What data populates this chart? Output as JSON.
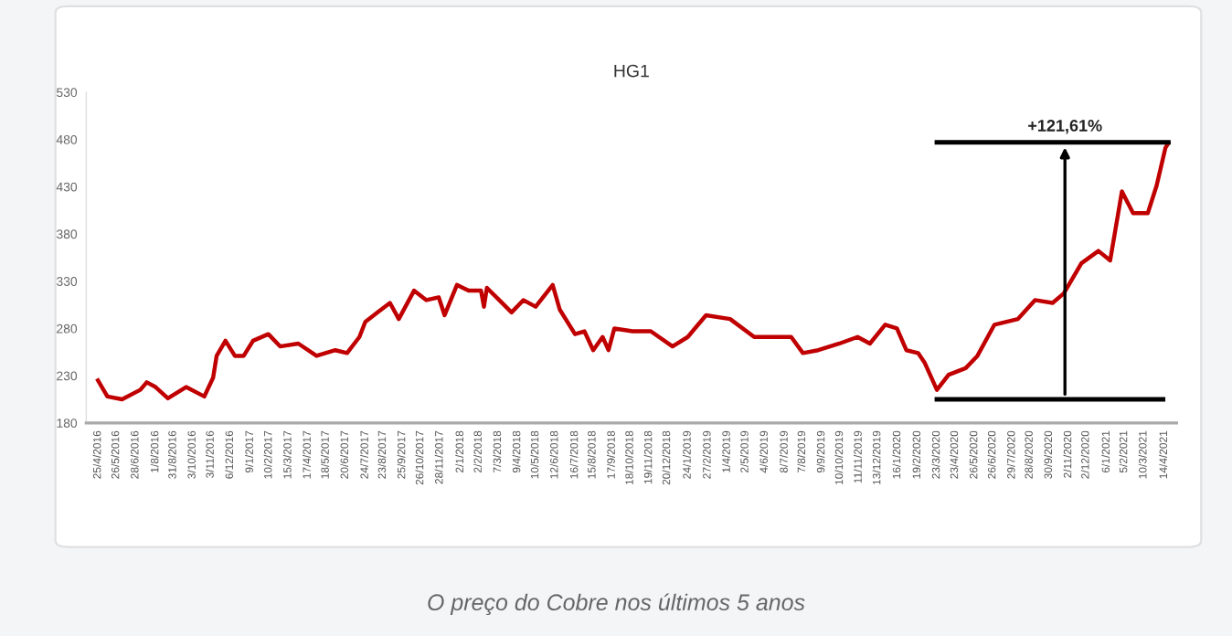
{
  "chart_data": {
    "type": "line",
    "title": "HG1",
    "x": [
      "2016-04-25",
      "2016-05-11",
      "2016-06-05",
      "2016-07-06",
      "2016-07-17",
      "2016-08-01",
      "2016-08-22",
      "2016-09-22",
      "2016-10-23",
      "2016-11-07",
      "2016-11-13",
      "2016-11-28",
      "2016-12-14",
      "2016-12-29",
      "2017-01-14",
      "2017-02-09",
      "2017-03-01",
      "2017-04-01",
      "2017-05-02",
      "2017-06-03",
      "2017-06-23",
      "2017-07-14",
      "2017-07-24",
      "2017-08-14",
      "2017-09-04",
      "2017-09-19",
      "2017-10-15",
      "2017-11-05",
      "2017-11-26",
      "2017-12-06",
      "2017-12-27",
      "2018-01-16",
      "2018-02-06",
      "2018-02-11",
      "2018-02-16",
      "2018-03-09",
      "2018-03-30",
      "2018-04-19",
      "2018-05-10",
      "2018-06-08",
      "2018-06-20",
      "2018-07-16",
      "2018-08-01",
      "2018-08-16",
      "2018-09-01",
      "2018-09-11",
      "2018-09-21",
      "2018-10-22",
      "2018-11-22",
      "2018-12-29",
      "2019-01-24",
      "2019-02-24",
      "2019-04-06",
      "2019-05-17",
      "2019-06-23",
      "2019-07-19",
      "2019-08-08",
      "2019-09-03",
      "2019-10-09",
      "2019-11-09",
      "2019-11-30",
      "2019-12-26",
      "2020-01-15",
      "2020-01-31",
      "2020-02-20",
      "2020-03-02",
      "2020-03-23",
      "2020-04-12",
      "2020-05-11",
      "2020-05-31",
      "2020-06-29",
      "2020-08-08",
      "2020-09-06",
      "2020-10-06",
      "2020-10-25",
      "2020-11-24",
      "2020-12-23",
      "2021-01-12",
      "2021-02-01",
      "2021-02-20",
      "2021-03-17",
      "2021-04-01",
      "2021-04-16",
      "2021-04-21"
    ],
    "series": [
      {
        "color": "#c00000",
        "values": [
          225,
          208,
          205,
          215,
          223,
          218,
          206,
          218,
          208,
          228,
          251,
          267,
          251,
          251,
          267,
          274,
          261,
          264,
          251,
          257,
          254,
          271,
          287,
          297,
          307,
          290,
          320,
          310,
          313,
          294,
          326,
          320,
          320,
          303,
          323,
          310,
          297,
          310,
          303,
          326,
          300,
          274,
          277,
          257,
          271,
          257,
          280,
          277,
          277,
          261,
          271,
          294,
          290,
          271,
          271,
          271,
          254,
          257,
          264,
          271,
          264,
          284,
          280,
          257,
          254,
          244,
          215,
          231,
          238,
          251,
          284,
          290,
          310,
          307,
          317,
          349,
          362,
          352,
          425,
          402,
          402,
          431,
          471,
          476
        ]
      },
      {
        "type": "line",
        "color": "#000000",
        "x": [
          "2020-03-23",
          "2021-04-21"
        ],
        "values": [
          477,
          477
        ]
      },
      {
        "type": "line",
        "color": "#000000",
        "x": [
          "2020-03-23",
          "2021-04-12"
        ],
        "values": [
          205,
          205
        ]
      }
    ],
    "annotations": [
      {
        "text": "+121,61%",
        "x": "2020-10-27",
        "y": 477
      },
      "O preço do Cobre nos últimos 5 anos"
    ],
    "xlim": [
      "2016-04-05",
      "2021-05-05"
    ],
    "ylim": [
      180,
      530
    ],
    "yticks": [
      180,
      230,
      280,
      330,
      380,
      430,
      480,
      530
    ],
    "xticks": [
      {
        "value": "2016-04-25",
        "label": "25/4/2016"
      },
      {
        "value": "2016-05-26",
        "label": "26/5/2016"
      },
      {
        "value": "2016-06-28",
        "label": "28/6/2016"
      },
      {
        "value": "2016-08-01",
        "label": "1/8/2016"
      },
      {
        "value": "2016-08-31",
        "label": "31/8/2016"
      },
      {
        "value": "2016-10-03",
        "label": "3/10/2016"
      },
      {
        "value": "2016-11-03",
        "label": "3/11/2016"
      },
      {
        "value": "2016-12-06",
        "label": "6/12/2016"
      },
      {
        "value": "2017-01-09",
        "label": "9/1/2017"
      },
      {
        "value": "2017-02-10",
        "label": "10/2/2017"
      },
      {
        "value": "2017-03-15",
        "label": "15/3/2017"
      },
      {
        "value": "2017-04-17",
        "label": "17/4/2017"
      },
      {
        "value": "2017-05-18",
        "label": "18/5/2017"
      },
      {
        "value": "2017-06-20",
        "label": "20/6/2017"
      },
      {
        "value": "2017-07-24",
        "label": "24/7/2017"
      },
      {
        "value": "2017-08-23",
        "label": "23/8/2017"
      },
      {
        "value": "2017-09-25",
        "label": "25/9/2017"
      },
      {
        "value": "2017-10-26",
        "label": "26/10/2017"
      },
      {
        "value": "2017-11-28",
        "label": "28/11/2017"
      },
      {
        "value": "2018-01-02",
        "label": "2/1/2018"
      },
      {
        "value": "2018-02-02",
        "label": "2/2/2018"
      },
      {
        "value": "2018-03-07",
        "label": "7/3/2018"
      },
      {
        "value": "2018-04-09",
        "label": "9/4/2018"
      },
      {
        "value": "2018-05-10",
        "label": "10/5/2018"
      },
      {
        "value": "2018-06-12",
        "label": "12/6/2018"
      },
      {
        "value": "2018-07-16",
        "label": "16/7/2018"
      },
      {
        "value": "2018-08-15",
        "label": "15/8/2018"
      },
      {
        "value": "2018-09-17",
        "label": "17/9/2018"
      },
      {
        "value": "2018-10-18",
        "label": "18/10/2018"
      },
      {
        "value": "2018-11-19",
        "label": "19/11/2018"
      },
      {
        "value": "2018-12-20",
        "label": "20/12/2018"
      },
      {
        "value": "2019-01-24",
        "label": "24/1/2019"
      },
      {
        "value": "2019-02-27",
        "label": "27/2/2019"
      },
      {
        "value": "2019-04-01",
        "label": "1/4/2019"
      },
      {
        "value": "2019-05-02",
        "label": "2/5/2019"
      },
      {
        "value": "2019-06-04",
        "label": "4/6/2019"
      },
      {
        "value": "2019-07-08",
        "label": "8/7/2019"
      },
      {
        "value": "2019-08-07",
        "label": "7/8/2019"
      },
      {
        "value": "2019-09-09",
        "label": "9/9/2019"
      },
      {
        "value": "2019-10-10",
        "label": "10/10/2019"
      },
      {
        "value": "2019-11-11",
        "label": "11/11/2019"
      },
      {
        "value": "2019-12-13",
        "label": "13/12/2019"
      },
      {
        "value": "2020-01-16",
        "label": "16/1/2020"
      },
      {
        "value": "2020-02-19",
        "label": "19/2/2020"
      },
      {
        "value": "2020-03-23",
        "label": "23/3/2020"
      },
      {
        "value": "2020-04-23",
        "label": "23/4/2020"
      },
      {
        "value": "2020-05-26",
        "label": "26/5/2020"
      },
      {
        "value": "2020-06-26",
        "label": "26/6/2020"
      },
      {
        "value": "2020-07-29",
        "label": "29/7/2020"
      },
      {
        "value": "2020-08-28",
        "label": "28/8/2020"
      },
      {
        "value": "2020-09-30",
        "label": "30/9/2020"
      },
      {
        "value": "2020-11-02",
        "label": "2/11/2020"
      },
      {
        "value": "2020-12-02",
        "label": "2/12/2020"
      },
      {
        "value": "2021-01-06",
        "label": "6/1/2021"
      },
      {
        "value": "2021-02-05",
        "label": "5/2/2021"
      },
      {
        "value": "2021-03-10",
        "label": "10/3/2021"
      },
      {
        "value": "2021-04-14",
        "label": "14/4/2021"
      }
    ],
    "grid": false,
    "legend": false
  }
}
